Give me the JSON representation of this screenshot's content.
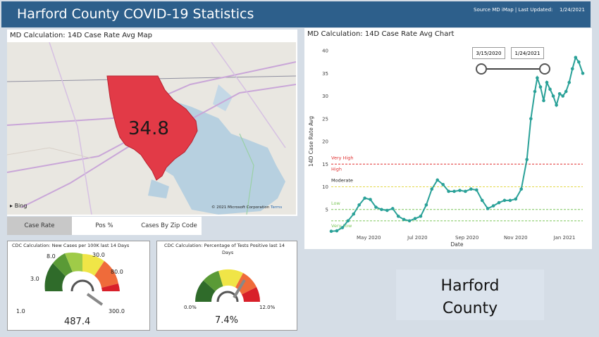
{
  "header": {
    "title": "Harford County COVID-19 Statistics",
    "source": "Source MD iMap | Last Updated:",
    "updated_date": "1/24/2021"
  },
  "map_panel": {
    "title": "MD Calculation: 14D Case Rate Avg Map",
    "value": "34.8",
    "bing": "Bing",
    "copyright": "© 2021 Microsoft Corporation",
    "terms": "Terms"
  },
  "tabs": [
    {
      "label": "Case Rate",
      "active": true
    },
    {
      "label": "Pos %",
      "active": false
    },
    {
      "label": "Cases By Zip Code",
      "active": false
    }
  ],
  "gauge1": {
    "title": "CDC Calculation: New Cases per 100K last 14 Days",
    "ticks": [
      "1.0",
      "3.0",
      "8.0",
      "30.0",
      "80.0",
      "300.0"
    ],
    "value": "487.4"
  },
  "gauge2": {
    "title_line1": "CDC Calculation: Percentage of Tests Positive last 14",
    "title_line2": "Days",
    "min": "0.0%",
    "max": "12.0%",
    "value": "7.4%"
  },
  "chart_panel": {
    "title": "MD Calculation: 14D Case Rate Avg Chart",
    "slider_start": "3/15/2020",
    "slider_end": "1/24/2021"
  },
  "county_card": {
    "line1": "Harford",
    "line2": "County"
  },
  "chart_data": {
    "type": "line",
    "ylabel": "14D Case Rate Avg",
    "xlabel": "Date",
    "ylim": [
      0,
      40
    ],
    "yticks": [
      5,
      10,
      15,
      20,
      25,
      30,
      35,
      40
    ],
    "xtick_labels": [
      "May 2020",
      "Jul 2020",
      "Sep 2020",
      "Nov 2020",
      "Jan 2021"
    ],
    "xtick_dates": [
      "2020-05-01",
      "2020-07-01",
      "2020-09-01",
      "2020-11-01",
      "2021-01-01"
    ],
    "x_range": [
      "2020-03-15",
      "2021-01-24"
    ],
    "thresholds": [
      {
        "label": "Very High",
        "value": 15,
        "color": "#e03030"
      },
      {
        "label": "High",
        "value": 15,
        "color": "#e03030"
      },
      {
        "label": "Moderate",
        "value": 10,
        "color": "#e3d84a"
      },
      {
        "label": "Low",
        "value": 5,
        "color": "#7cc65a"
      },
      {
        "label": "Very Low",
        "value": 2.5,
        "color": "#7cc65a"
      }
    ],
    "line_color": "#2aa198",
    "x": [
      "2020-03-15",
      "2020-03-22",
      "2020-03-29",
      "2020-04-05",
      "2020-04-12",
      "2020-04-19",
      "2020-04-26",
      "2020-05-03",
      "2020-05-10",
      "2020-05-17",
      "2020-05-24",
      "2020-05-31",
      "2020-06-07",
      "2020-06-14",
      "2020-06-21",
      "2020-06-28",
      "2020-07-05",
      "2020-07-12",
      "2020-07-19",
      "2020-07-26",
      "2020-08-02",
      "2020-08-09",
      "2020-08-16",
      "2020-08-23",
      "2020-08-30",
      "2020-09-06",
      "2020-09-13",
      "2020-09-20",
      "2020-09-27",
      "2020-10-04",
      "2020-10-11",
      "2020-10-18",
      "2020-10-25",
      "2020-11-01",
      "2020-11-08",
      "2020-11-15",
      "2020-11-20",
      "2020-11-25",
      "2020-11-28",
      "2020-12-02",
      "2020-12-06",
      "2020-12-10",
      "2020-12-14",
      "2020-12-18",
      "2020-12-22",
      "2020-12-26",
      "2020-12-30",
      "2021-01-03",
      "2021-01-07",
      "2021-01-11",
      "2021-01-15",
      "2021-01-19",
      "2021-01-24"
    ],
    "values": [
      0.2,
      0.3,
      1.0,
      2.5,
      4.0,
      6.0,
      7.5,
      7.2,
      5.5,
      5.0,
      4.8,
      5.2,
      3.5,
      2.8,
      2.5,
      3.0,
      3.5,
      6.0,
      9.5,
      11.5,
      10.5,
      9.0,
      9.0,
      9.2,
      9.0,
      9.5,
      9.3,
      7.0,
      5.2,
      5.8,
      6.5,
      7.0,
      7.0,
      7.3,
      9.5,
      16.0,
      25.0,
      31.0,
      34.0,
      32.0,
      29.0,
      33.0,
      31.5,
      30.0,
      28.0,
      30.5,
      30.0,
      31.0,
      33.0,
      36.0,
      38.5,
      37.5,
      35.0
    ]
  }
}
